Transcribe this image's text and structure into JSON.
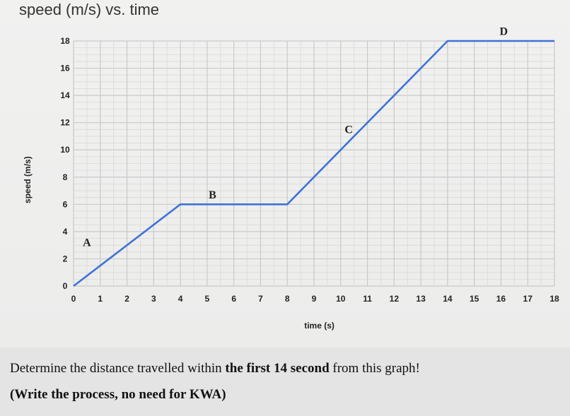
{
  "chart_data": {
    "type": "line",
    "title": "speed (m/s) vs. time",
    "xlabel": "time (s)",
    "ylabel": "speed (m/s)",
    "xlim": [
      0,
      18
    ],
    "ylim": [
      0,
      18
    ],
    "x_ticks": [
      "0",
      "1",
      "2",
      "3",
      "4",
      "5",
      "6",
      "7",
      "8",
      "9",
      "10",
      "11",
      "12",
      "13",
      "14",
      "15",
      "16",
      "17",
      "18"
    ],
    "y_ticks": [
      "0",
      "2",
      "4",
      "6",
      "8",
      "10",
      "12",
      "14",
      "16",
      "18"
    ],
    "grid": true,
    "series": [
      {
        "color": "#3d73d6",
        "points": [
          [
            0,
            0
          ],
          [
            4,
            6
          ],
          [
            8,
            6
          ],
          [
            14,
            18
          ],
          [
            18,
            18
          ]
        ]
      }
    ],
    "segment_labels": [
      {
        "text": "A",
        "x": 0.5,
        "y": 3.2
      },
      {
        "text": "B",
        "x": 5.2,
        "y": 6.7
      },
      {
        "text": "C",
        "x": 10.3,
        "y": 11.5
      },
      {
        "text": "D",
        "x": 16.1,
        "y": 18.7
      }
    ]
  },
  "question": {
    "part1": "Determine the distance travelled  within ",
    "bold": "the first 14 second",
    "part2": " from this graph!",
    "instruction": "(Write the process, no need for KWA)"
  }
}
